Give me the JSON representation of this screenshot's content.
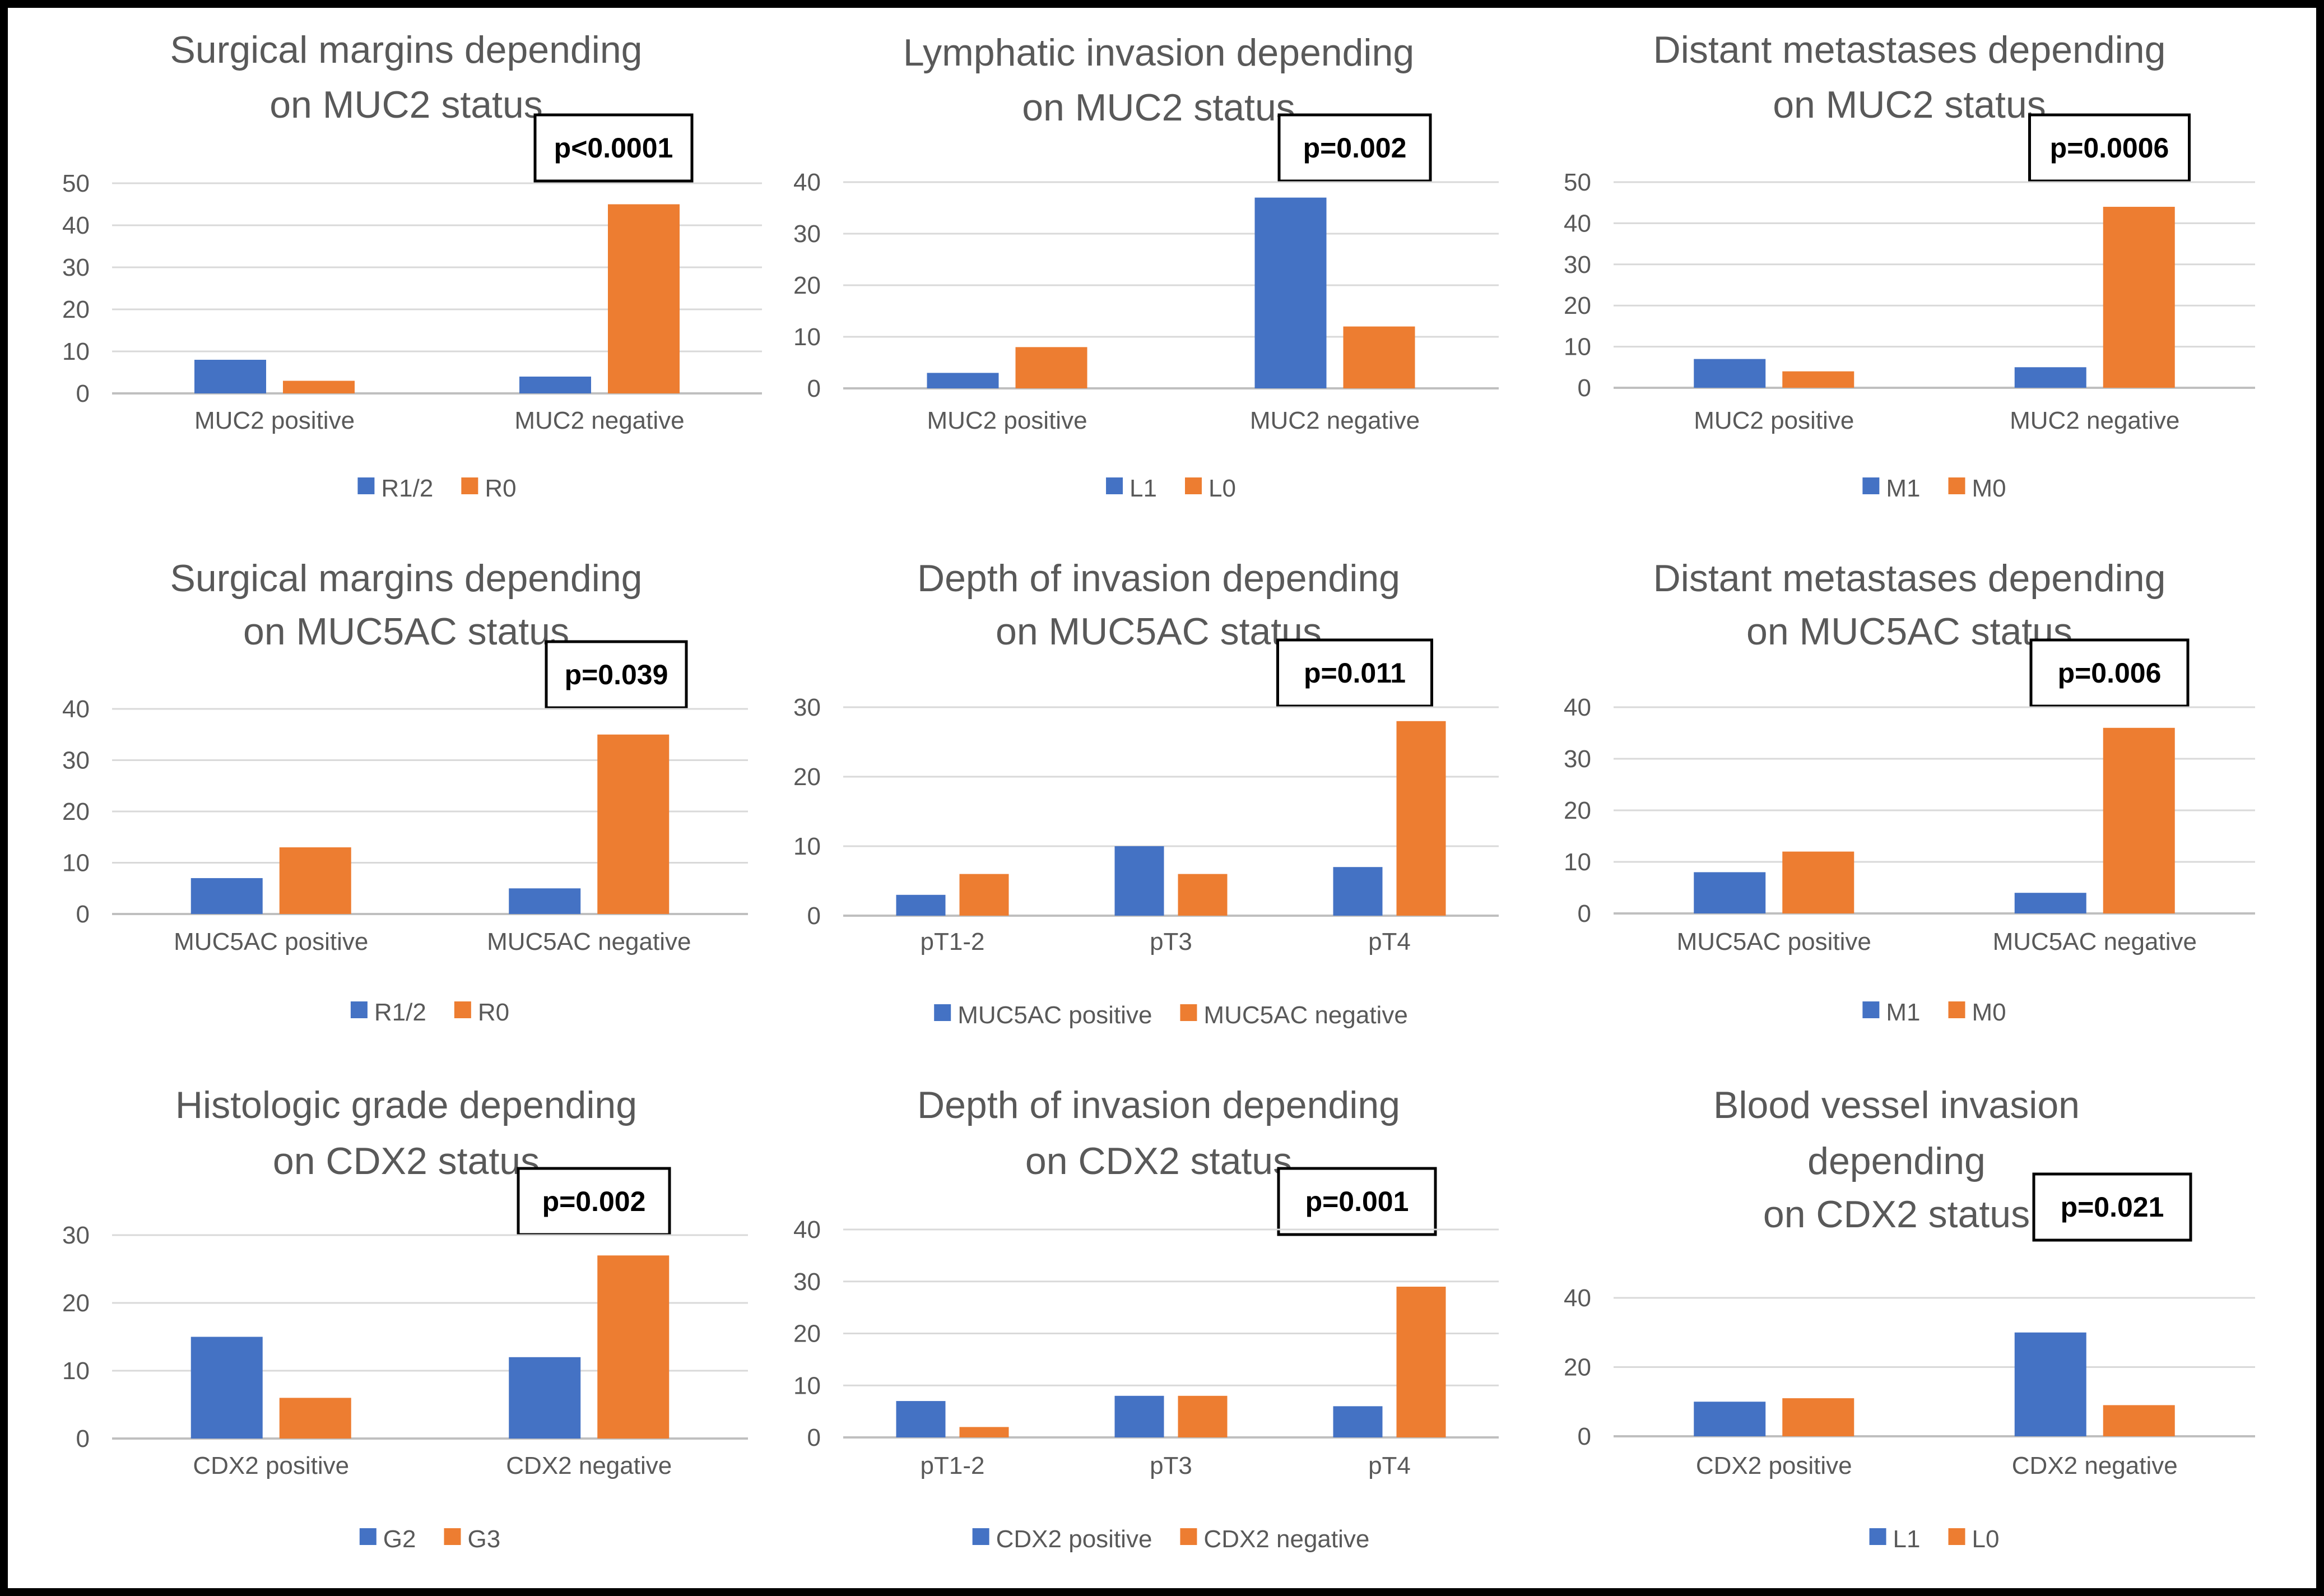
{
  "colors": {
    "series1": "#4472c4",
    "series2": "#ed7d31",
    "grid": "#d9d9d9",
    "axis": "#bfbfbf",
    "text": "#595959"
  },
  "chart_data": [
    {
      "type": "bar",
      "title": [
        "Surgical margins depending",
        "on MUC2 status"
      ],
      "pvalue": "p<0.0001",
      "categories": [
        "MUC2 positive",
        "MUC2 negative"
      ],
      "series": [
        {
          "name": "R1/2",
          "values": [
            8,
            4
          ]
        },
        {
          "name": "R0",
          "values": [
            3,
            45
          ]
        }
      ],
      "ylim": [
        0,
        50
      ],
      "yticks": [
        0,
        10,
        20,
        30,
        40,
        50
      ]
    },
    {
      "type": "bar",
      "title": [
        "Lymphatic invasion depending",
        "on MUC2 status"
      ],
      "pvalue": "p=0.002",
      "categories": [
        "MUC2 positive",
        "MUC2 negative"
      ],
      "series": [
        {
          "name": "L1",
          "values": [
            3,
            37
          ]
        },
        {
          "name": "L0",
          "values": [
            8,
            12
          ]
        }
      ],
      "ylim": [
        0,
        40
      ],
      "yticks": [
        0,
        10,
        20,
        30,
        40
      ]
    },
    {
      "type": "bar",
      "title": [
        "Distant metastases depending",
        "on MUC2 status"
      ],
      "pvalue": "p=0.0006",
      "categories": [
        "MUC2 positive",
        "MUC2 negative"
      ],
      "series": [
        {
          "name": "M1",
          "values": [
            7,
            5
          ]
        },
        {
          "name": "M0",
          "values": [
            4,
            44
          ]
        }
      ],
      "ylim": [
        0,
        50
      ],
      "yticks": [
        0,
        10,
        20,
        30,
        40,
        50
      ]
    },
    {
      "type": "bar",
      "title": [
        "Surgical margins depending",
        "on MUC5AC status"
      ],
      "pvalue": "p=0.039",
      "categories": [
        "MUC5AC positive",
        "MUC5AC negative"
      ],
      "series": [
        {
          "name": "R1/2",
          "values": [
            7,
            5
          ]
        },
        {
          "name": "R0",
          "values": [
            13,
            35
          ]
        }
      ],
      "ylim": [
        0,
        40
      ],
      "yticks": [
        0,
        10,
        20,
        30,
        40
      ]
    },
    {
      "type": "bar",
      "title": [
        "Depth of invasion depending",
        "on MUC5AC status"
      ],
      "pvalue": "p=0.011",
      "categories": [
        "pT1-2",
        "pT3",
        "pT4"
      ],
      "series": [
        {
          "name": "MUC5AC positive",
          "values": [
            3,
            10,
            7
          ]
        },
        {
          "name": "MUC5AC negative",
          "values": [
            6,
            6,
            28
          ]
        }
      ],
      "ylim": [
        0,
        30
      ],
      "yticks": [
        0,
        10,
        20,
        30
      ]
    },
    {
      "type": "bar",
      "title": [
        "Distant metastases depending",
        "on MUC5AC status"
      ],
      "pvalue": "p=0.006",
      "categories": [
        "MUC5AC positive",
        "MUC5AC negative"
      ],
      "series": [
        {
          "name": "M1",
          "values": [
            8,
            4
          ]
        },
        {
          "name": "M0",
          "values": [
            12,
            36
          ]
        }
      ],
      "ylim": [
        0,
        40
      ],
      "yticks": [
        0,
        10,
        20,
        30,
        40
      ]
    },
    {
      "type": "bar",
      "title": [
        "Histologic grade depending",
        "on CDX2 status"
      ],
      "pvalue": "p=0.002",
      "categories": [
        "CDX2 positive",
        "CDX2 negative"
      ],
      "series": [
        {
          "name": "G2",
          "values": [
            15,
            12
          ]
        },
        {
          "name": "G3",
          "values": [
            6,
            27
          ]
        }
      ],
      "ylim": [
        0,
        30
      ],
      "yticks": [
        0,
        10,
        20,
        30
      ]
    },
    {
      "type": "bar",
      "title": [
        "Depth of invasion depending",
        "on CDX2 status"
      ],
      "pvalue": "p=0.001",
      "categories": [
        "pT1-2",
        "pT3",
        "pT4"
      ],
      "series": [
        {
          "name": "CDX2 positive",
          "values": [
            7,
            8,
            6
          ]
        },
        {
          "name": "CDX2 negative",
          "values": [
            2,
            8,
            29
          ]
        }
      ],
      "ylim": [
        0,
        40
      ],
      "yticks": [
        0,
        10,
        20,
        30,
        40
      ]
    },
    {
      "type": "bar",
      "title": [
        "Blood vessel invasion",
        "depending",
        "on CDX2 status"
      ],
      "pvalue": "p=0.021",
      "categories": [
        "CDX2 positive",
        "CDX2 negative"
      ],
      "series": [
        {
          "name": "L1",
          "values": [
            10,
            30
          ]
        },
        {
          "name": "L0",
          "values": [
            11,
            9
          ]
        }
      ],
      "ylim": [
        0,
        40
      ],
      "yticks": [
        0,
        20,
        40
      ]
    }
  ]
}
